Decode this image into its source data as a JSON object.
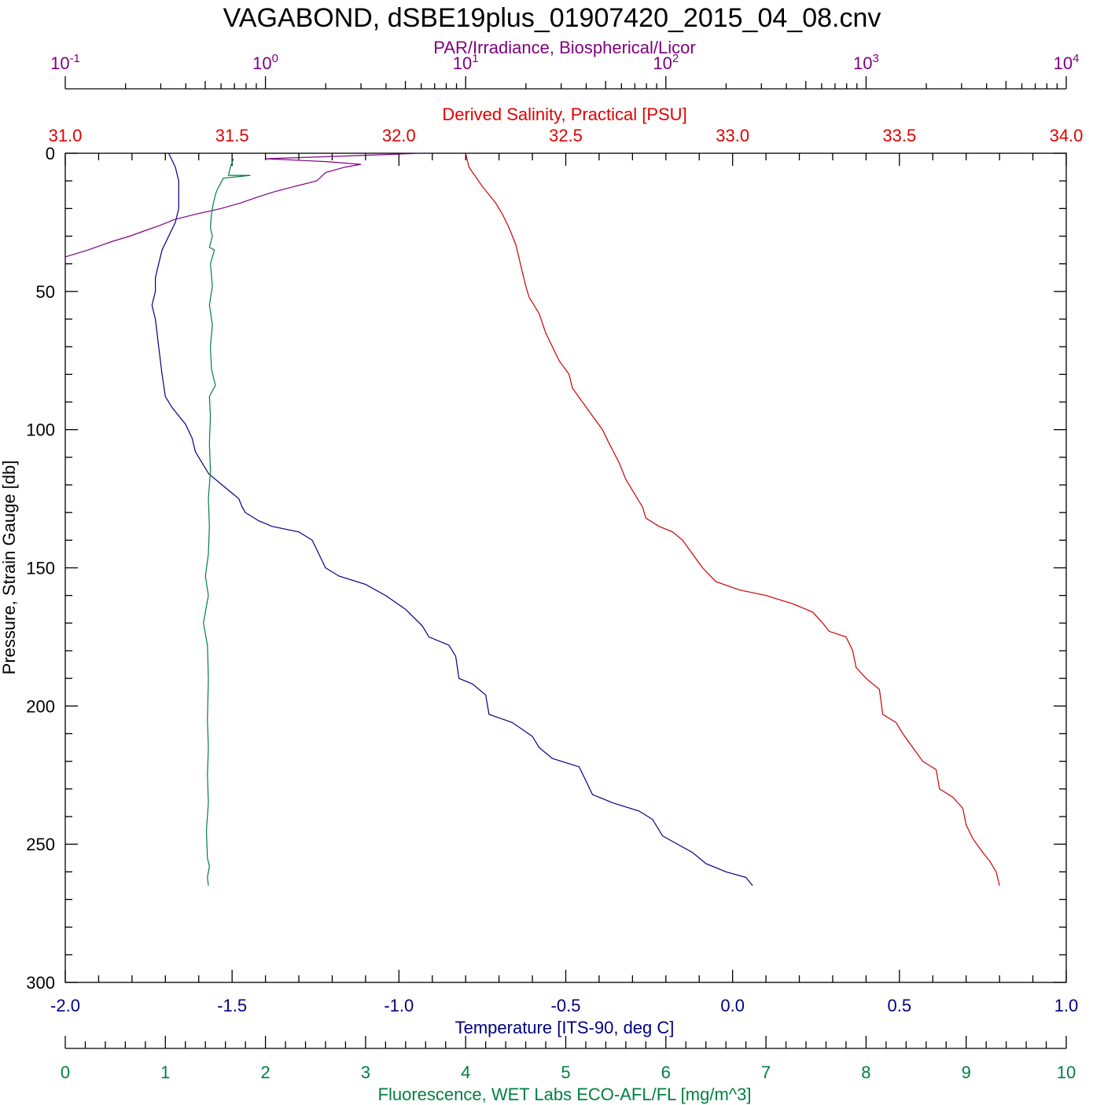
{
  "title": "VAGABOND, dSBE19plus_01907420_2015_04_08.cnv",
  "colors": {
    "temperature": "#000080",
    "salinity": "#cc0000",
    "par": "#800080",
    "fluorescence": "#008040",
    "frame": "#000000"
  },
  "axes": {
    "par": {
      "label": "PAR/Irradiance, Biospherical/Licor",
      "scale": "log",
      "range": [
        0.1,
        10000
      ],
      "tick_labels": [
        {
          "base": "10",
          "exp": "-1"
        },
        {
          "base": "10",
          "exp": "0"
        },
        {
          "base": "10",
          "exp": "1"
        },
        {
          "base": "10",
          "exp": "2"
        },
        {
          "base": "10",
          "exp": "3"
        },
        {
          "base": "10",
          "exp": "4"
        }
      ]
    },
    "salinity": {
      "label": "Derived Salinity, Practical [PSU]",
      "range": [
        31.0,
        34.0
      ],
      "tick_labels": [
        "31.0",
        "31.5",
        "32.0",
        "32.5",
        "33.0",
        "33.5",
        "34.0"
      ]
    },
    "temperature": {
      "label": "Temperature [ITS-90, deg C]",
      "range": [
        -2.0,
        1.0
      ],
      "tick_labels": [
        "-2.0",
        "-1.5",
        "-1.0",
        "-0.5",
        "0.0",
        "0.5",
        "1.0"
      ]
    },
    "fluorescence": {
      "label": "Fluorescence, WET Labs ECO-AFL/FL [mg/m^3]",
      "range": [
        0,
        10
      ],
      "tick_labels": [
        "0",
        "1",
        "2",
        "3",
        "4",
        "5",
        "6",
        "7",
        "8",
        "9",
        "10"
      ]
    },
    "pressure": {
      "label": "Pressure, Strain Gauge [db]",
      "range": [
        0,
        300
      ],
      "inverted": true,
      "tick_labels": [
        "0",
        "50",
        "100",
        "150",
        "200",
        "250",
        "300"
      ]
    }
  },
  "chart_data": {
    "type": "line",
    "title": "VAGABOND, dSBE19plus_01907420_2015_04_08.cnv",
    "ylabel": "Pressure, Strain Gauge [db]",
    "ylim": [
      300,
      0
    ],
    "grid": false,
    "series": [
      {
        "name": "Temperature [ITS-90, deg C]",
        "axis": "temperature",
        "points": [
          [
            -1.69,
            0
          ],
          [
            -1.67,
            5
          ],
          [
            -1.66,
            10
          ],
          [
            -1.66,
            15
          ],
          [
            -1.66,
            20
          ],
          [
            -1.67,
            25
          ],
          [
            -1.69,
            30
          ],
          [
            -1.71,
            35
          ],
          [
            -1.72,
            40
          ],
          [
            -1.73,
            45
          ],
          [
            -1.73,
            50
          ],
          [
            -1.74,
            55
          ],
          [
            -1.73,
            60
          ],
          [
            -1.72,
            70
          ],
          [
            -1.71,
            80
          ],
          [
            -1.7,
            88
          ],
          [
            -1.68,
            92
          ],
          [
            -1.66,
            95
          ],
          [
            -1.64,
            98
          ],
          [
            -1.62,
            103
          ],
          [
            -1.61,
            108
          ],
          [
            -1.59,
            112
          ],
          [
            -1.57,
            116
          ],
          [
            -1.53,
            120
          ],
          [
            -1.5,
            123
          ],
          [
            -1.48,
            125
          ],
          [
            -1.47,
            128
          ],
          [
            -1.46,
            130
          ],
          [
            -1.42,
            133
          ],
          [
            -1.38,
            135
          ],
          [
            -1.3,
            137
          ],
          [
            -1.26,
            140
          ],
          [
            -1.24,
            145
          ],
          [
            -1.22,
            150
          ],
          [
            -1.18,
            153
          ],
          [
            -1.1,
            156
          ],
          [
            -1.04,
            160
          ],
          [
            -0.98,
            165
          ],
          [
            -0.93,
            171
          ],
          [
            -0.91,
            175
          ],
          [
            -0.85,
            178
          ],
          [
            -0.83,
            182
          ],
          [
            -0.82,
            190
          ],
          [
            -0.78,
            192
          ],
          [
            -0.74,
            196
          ],
          [
            -0.73,
            203
          ],
          [
            -0.66,
            206
          ],
          [
            -0.6,
            211
          ],
          [
            -0.58,
            215
          ],
          [
            -0.54,
            219
          ],
          [
            -0.46,
            222
          ],
          [
            -0.44,
            227
          ],
          [
            -0.42,
            232
          ],
          [
            -0.36,
            235
          ],
          [
            -0.28,
            238
          ],
          [
            -0.24,
            241
          ],
          [
            -0.21,
            247
          ],
          [
            -0.12,
            253
          ],
          [
            -0.08,
            257
          ],
          [
            -0.02,
            260
          ],
          [
            0.04,
            262
          ],
          [
            0.06,
            265
          ]
        ]
      },
      {
        "name": "Derived Salinity, Practical [PSU]",
        "axis": "salinity",
        "points": [
          [
            32.2,
            0
          ],
          [
            32.21,
            5
          ],
          [
            32.25,
            12
          ],
          [
            32.29,
            18
          ],
          [
            32.31,
            22
          ],
          [
            32.33,
            27
          ],
          [
            32.35,
            33
          ],
          [
            32.36,
            38
          ],
          [
            32.37,
            43
          ],
          [
            32.38,
            48
          ],
          [
            32.39,
            52
          ],
          [
            32.42,
            58
          ],
          [
            32.44,
            65
          ],
          [
            32.46,
            70
          ],
          [
            32.48,
            75
          ],
          [
            32.51,
            80
          ],
          [
            32.52,
            85
          ],
          [
            32.55,
            90
          ],
          [
            32.58,
            95
          ],
          [
            32.61,
            100
          ],
          [
            32.63,
            105
          ],
          [
            32.66,
            112
          ],
          [
            32.68,
            118
          ],
          [
            32.71,
            124
          ],
          [
            32.73,
            128
          ],
          [
            32.74,
            132
          ],
          [
            32.78,
            135
          ],
          [
            32.82,
            137
          ],
          [
            32.85,
            140
          ],
          [
            32.88,
            145
          ],
          [
            32.91,
            150
          ],
          [
            32.95,
            155
          ],
          [
            33.02,
            158
          ],
          [
            33.1,
            160
          ],
          [
            33.18,
            163
          ],
          [
            33.24,
            166
          ],
          [
            33.27,
            170
          ],
          [
            33.29,
            173
          ],
          [
            33.34,
            175
          ],
          [
            33.36,
            180
          ],
          [
            33.37,
            186
          ],
          [
            33.4,
            190
          ],
          [
            33.44,
            194
          ],
          [
            33.45,
            203
          ],
          [
            33.49,
            206
          ],
          [
            33.51,
            210
          ],
          [
            33.54,
            215
          ],
          [
            33.57,
            220
          ],
          [
            33.61,
            223
          ],
          [
            33.62,
            230
          ],
          [
            33.66,
            233
          ],
          [
            33.69,
            237
          ],
          [
            33.7,
            243
          ],
          [
            33.72,
            248
          ],
          [
            33.75,
            253
          ],
          [
            33.77,
            256
          ],
          [
            33.79,
            260
          ],
          [
            33.8,
            265
          ]
        ]
      },
      {
        "name": "PAR/Irradiance, Biospherical/Licor",
        "axis": "par",
        "points": [
          [
            6.0,
            0
          ],
          [
            2.5,
            1
          ],
          [
            1.0,
            2
          ],
          [
            2.0,
            3
          ],
          [
            3.0,
            4
          ],
          [
            2.5,
            5
          ],
          [
            2.0,
            7
          ],
          [
            1.8,
            10
          ],
          [
            1.4,
            12
          ],
          [
            1.1,
            14
          ],
          [
            0.9,
            16
          ],
          [
            0.75,
            18
          ],
          [
            0.6,
            20
          ],
          [
            0.45,
            22
          ],
          [
            0.35,
            24
          ],
          [
            0.3,
            26
          ],
          [
            0.25,
            28
          ],
          [
            0.21,
            30
          ],
          [
            0.17,
            32
          ],
          [
            0.13,
            35
          ],
          [
            0.1,
            37.5
          ]
        ]
      },
      {
        "name": "Fluorescence, WET Labs ECO-AFL/FL [mg/m^3]",
        "axis": "fluorescence",
        "points": [
          [
            1.68,
            2
          ],
          [
            1.65,
            5
          ],
          [
            1.63,
            8
          ],
          [
            1.85,
            8
          ],
          [
            1.58,
            9
          ],
          [
            1.55,
            11
          ],
          [
            1.52,
            13
          ],
          [
            1.5,
            15
          ],
          [
            1.48,
            18
          ],
          [
            1.46,
            22
          ],
          [
            1.45,
            27
          ],
          [
            1.47,
            30
          ],
          [
            1.44,
            34
          ],
          [
            1.49,
            35
          ],
          [
            1.45,
            40
          ],
          [
            1.47,
            48
          ],
          [
            1.44,
            55
          ],
          [
            1.47,
            62
          ],
          [
            1.45,
            70
          ],
          [
            1.46,
            78
          ],
          [
            1.5,
            84
          ],
          [
            1.44,
            88
          ],
          [
            1.45,
            95
          ],
          [
            1.44,
            105
          ],
          [
            1.45,
            115
          ],
          [
            1.43,
            125
          ],
          [
            1.44,
            135
          ],
          [
            1.43,
            145
          ],
          [
            1.4,
            153
          ],
          [
            1.43,
            160
          ],
          [
            1.38,
            170
          ],
          [
            1.42,
            178
          ],
          [
            1.43,
            190
          ],
          [
            1.42,
            205
          ],
          [
            1.43,
            215
          ],
          [
            1.42,
            225
          ],
          [
            1.43,
            235
          ],
          [
            1.41,
            245
          ],
          [
            1.42,
            255
          ],
          [
            1.44,
            258
          ],
          [
            1.42,
            262
          ],
          [
            1.43,
            265
          ]
        ]
      }
    ]
  }
}
